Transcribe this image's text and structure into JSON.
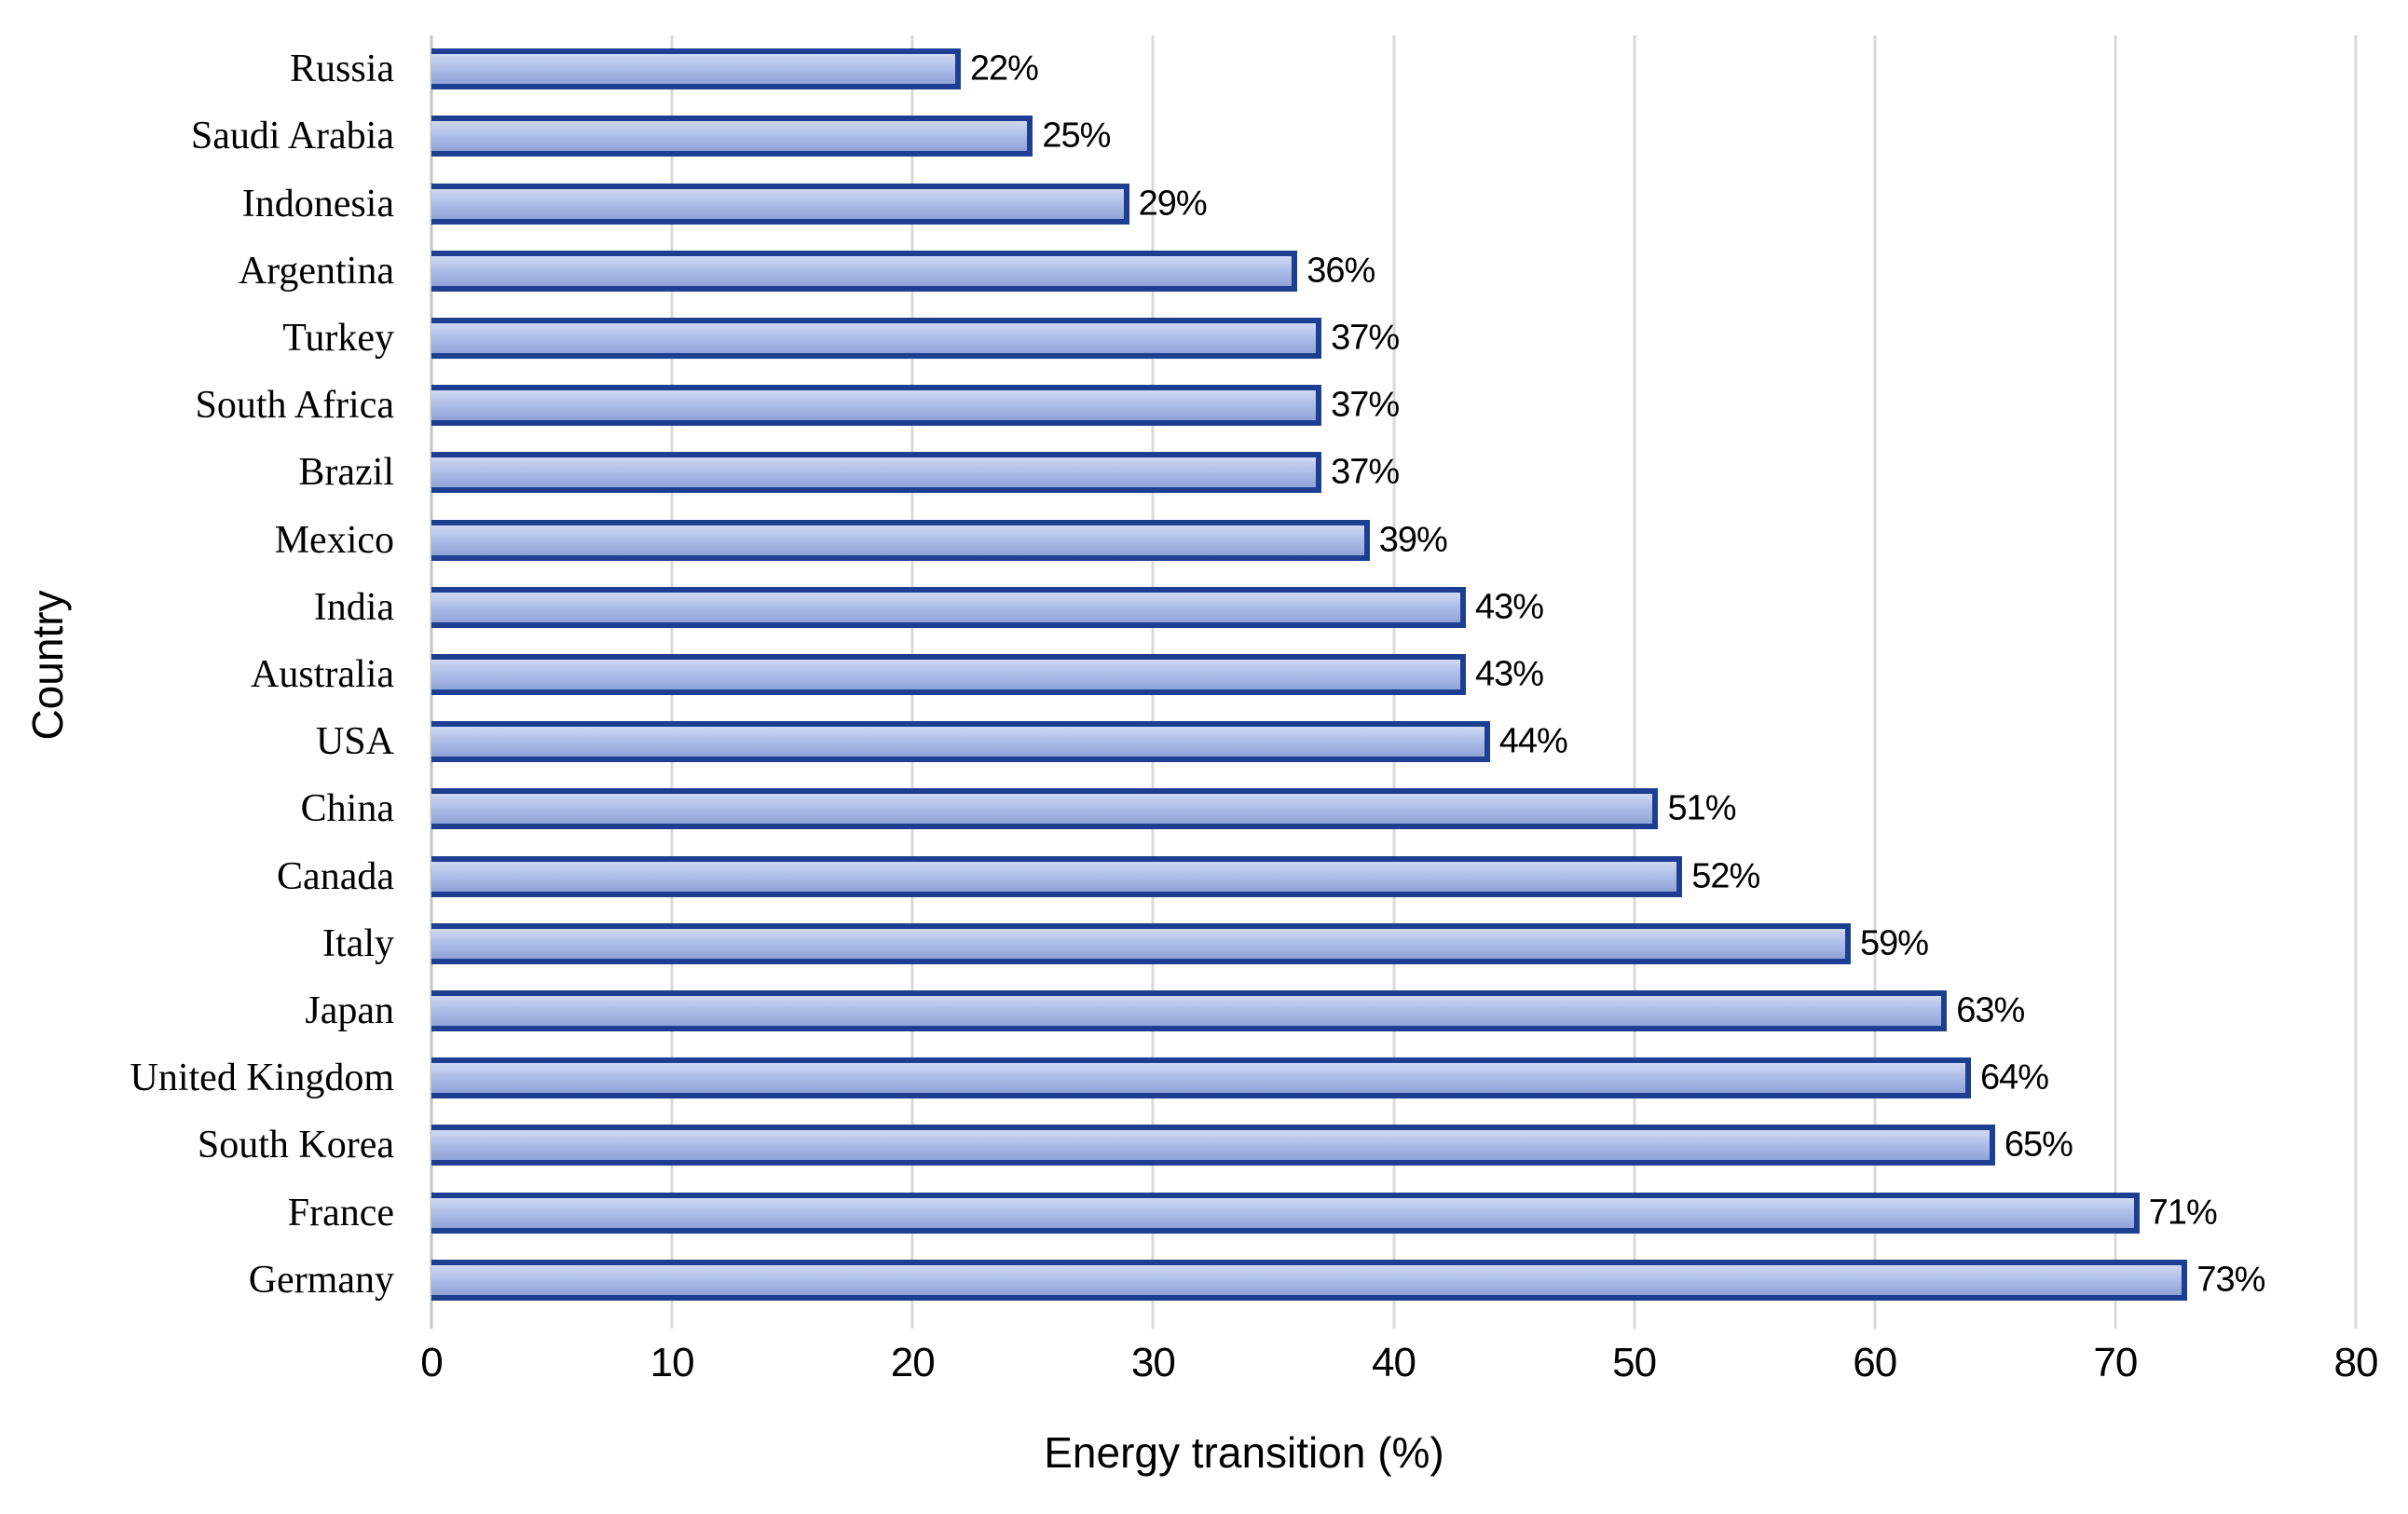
{
  "chart_data": {
    "type": "bar",
    "orientation": "horizontal",
    "title": "",
    "xlabel": "Energy transition (%)",
    "ylabel": "Country",
    "xlim": [
      0,
      80
    ],
    "xticks": [
      "0",
      "10",
      "20",
      "30",
      "40",
      "50",
      "60",
      "70",
      "80"
    ],
    "grid": "vertical",
    "legend": "none",
    "categories": [
      "Russia",
      "Saudi Arabia",
      "Indonesia",
      "Argentina",
      "Turkey",
      "South Africa",
      "Brazil",
      "Mexico",
      "India",
      "Australia",
      "USA",
      "China",
      "Canada",
      "Italy",
      "Japan",
      "United Kingdom",
      "South Korea",
      "France",
      "Germany"
    ],
    "values": [
      22,
      25,
      29,
      36,
      37,
      37,
      37,
      39,
      43,
      43,
      44,
      51,
      52,
      59,
      63,
      64,
      65,
      71,
      73
    ],
    "value_labels": [
      "22%",
      "25%",
      "29%",
      "36%",
      "37%",
      "37%",
      "37%",
      "39%",
      "43%",
      "43%",
      "44%",
      "51%",
      "52%",
      "59%",
      "63%",
      "64%",
      "65%",
      "71%",
      "73%"
    ],
    "colors": {
      "bar_border": "#1e3e92",
      "bar_fill_top": "#cfd9f3",
      "bar_fill_mid": "#aebfe9",
      "bar_fill_bottom": "#8fa3d7",
      "bar_fill_bottom_fixed": "#8fa3d7",
      "gridline": "#d9d9d9",
      "axis_line": "#c4c4c4",
      "text": "#000000",
      "background": "#ffffff"
    }
  }
}
